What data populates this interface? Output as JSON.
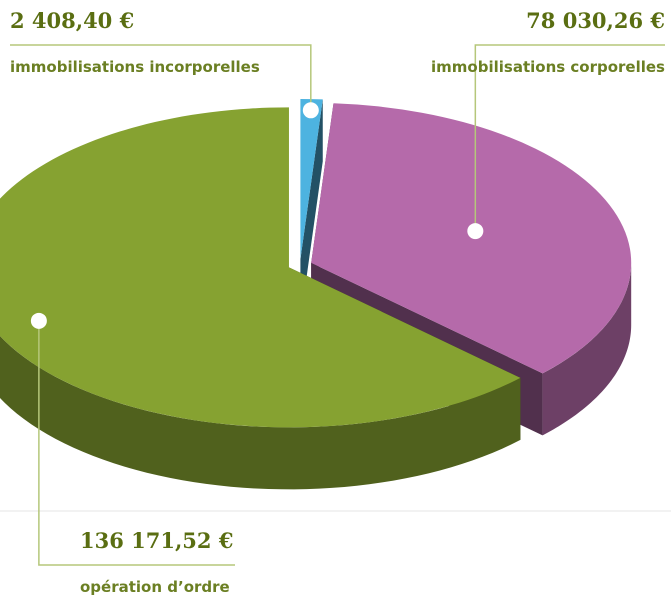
{
  "chart_data": {
    "type": "pie",
    "categories": [
      "immobilisations incorporelles",
      "immobilisations corporelles",
      "opération d’ordre"
    ],
    "values": [
      2408.4,
      78030.26,
      136171.52
    ],
    "value_labels": [
      "2 408,40 €",
      "78 030,26 €",
      "136 171,52 €"
    ],
    "colors": [
      "#4db3e0",
      "#b56aaa",
      "#86a231"
    ]
  }
}
